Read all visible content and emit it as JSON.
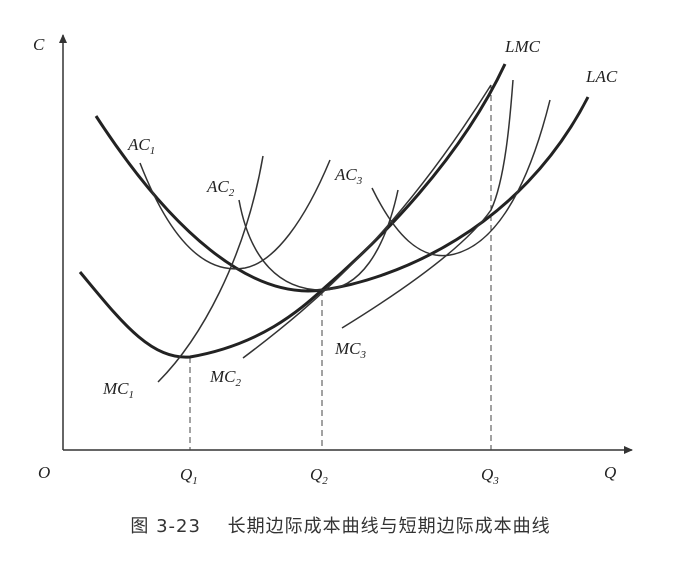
{
  "axes": {
    "y_label": "C",
    "x_label": "Q",
    "origin": "O",
    "ticks": [
      {
        "main": "Q",
        "sub": "1"
      },
      {
        "main": "Q",
        "sub": "2"
      },
      {
        "main": "Q",
        "sub": "3"
      }
    ]
  },
  "curves": {
    "lmc": "LMC",
    "lac": "LAC",
    "ac1": {
      "main": "AC",
      "sub": "1"
    },
    "ac2": {
      "main": "AC",
      "sub": "2"
    },
    "ac3": {
      "main": "AC",
      "sub": "3"
    },
    "mc1": {
      "main": "MC",
      "sub": "1"
    },
    "mc2": {
      "main": "MC",
      "sub": "2"
    },
    "mc3": {
      "main": "MC",
      "sub": "3"
    }
  },
  "caption": {
    "number": "图 3-23",
    "title": "长期边际成本曲线与短期边际成本曲线"
  }
}
